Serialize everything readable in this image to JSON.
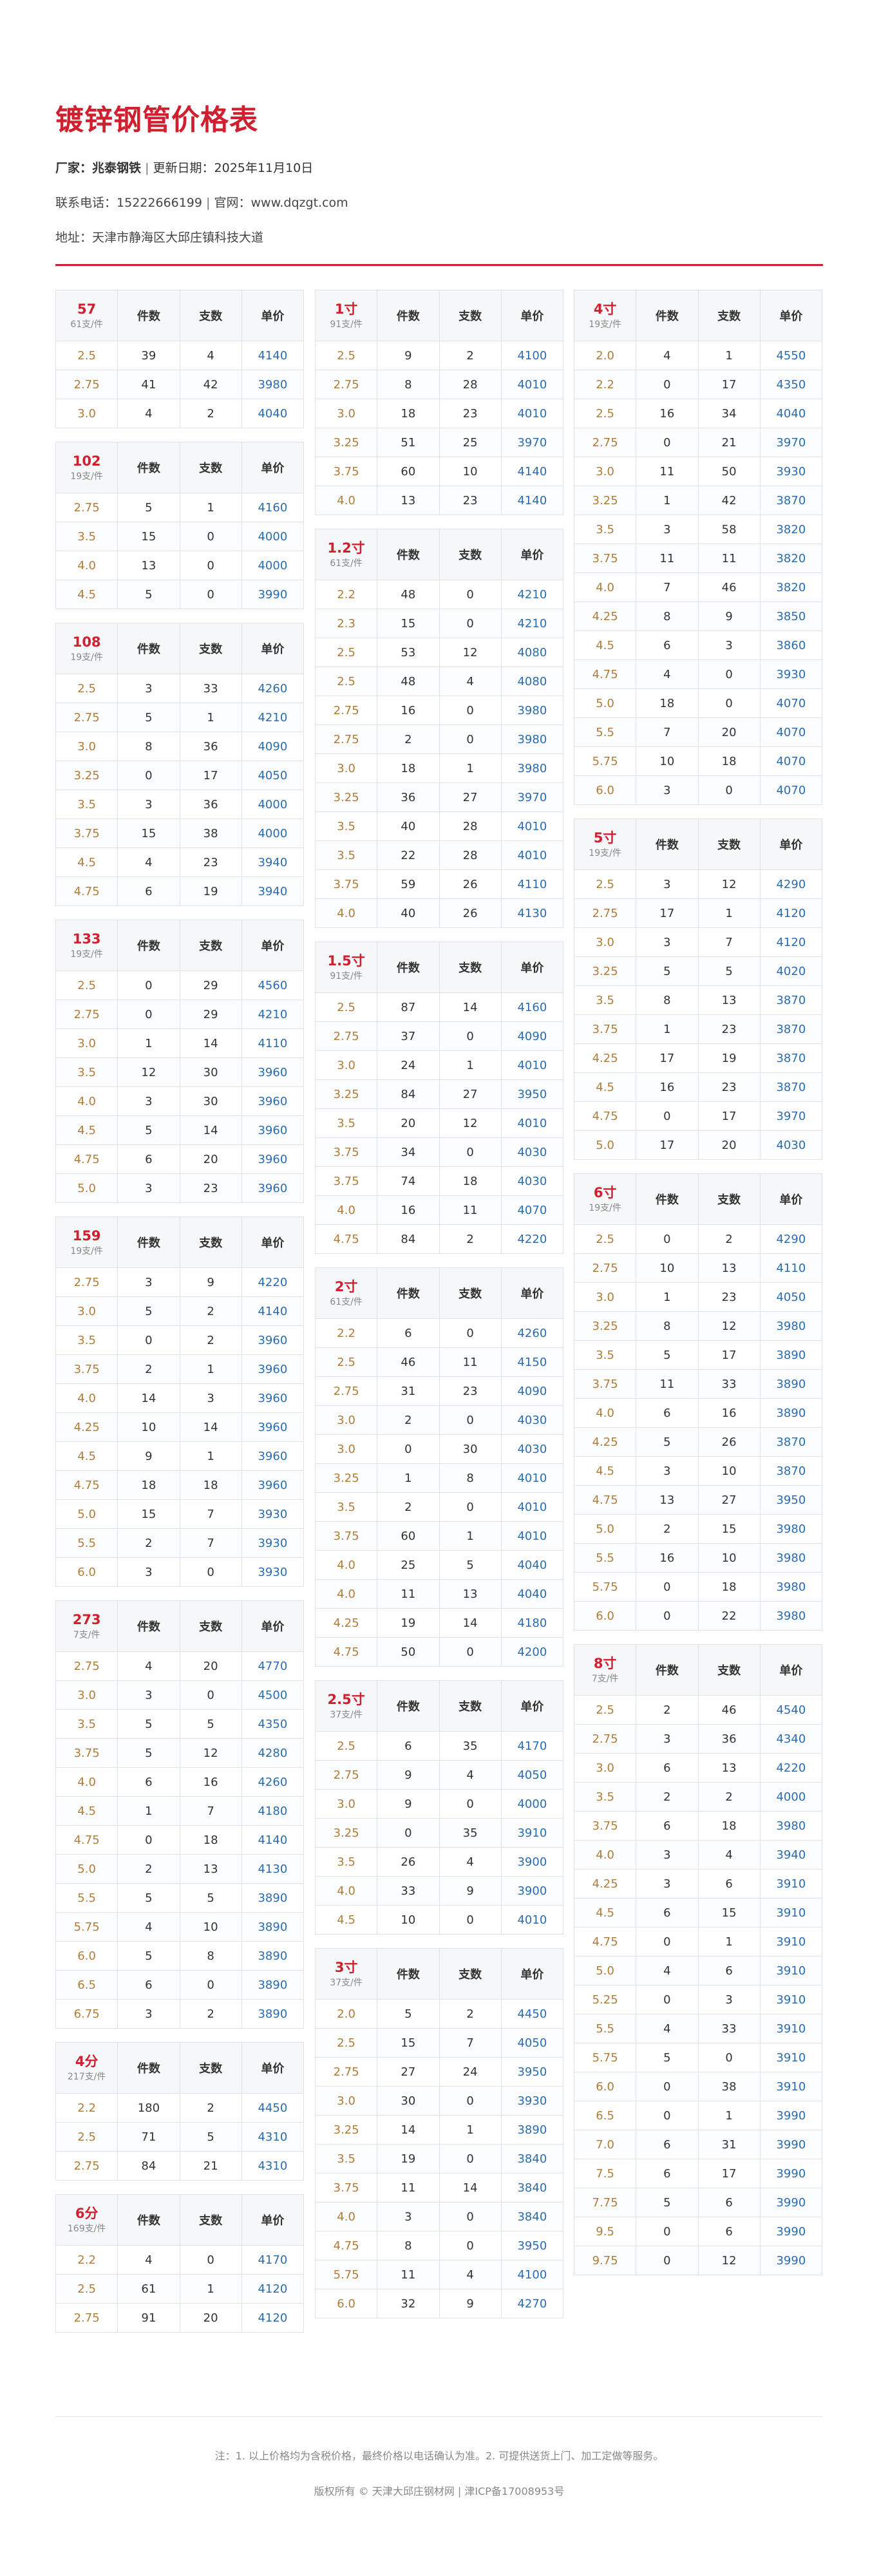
{
  "title": "镀锌钢管价格表",
  "info": {
    "maker_label": "厂家：",
    "maker": "兆泰钢铁",
    "separator": "|",
    "date_label": "更新日期：",
    "date": "2025年11月10日",
    "phone_label": "联系电话：",
    "phone": "15222666199",
    "site_label": "官网：",
    "site": "www.dqzgt.com",
    "addr_label": "地址：",
    "addr": "天津市静海区大邱庄镇科技大道"
  },
  "table_headers": {
    "count": "件数",
    "pieces": "支数",
    "price": "单价"
  },
  "columns": [
    [
      {
        "size": "57",
        "pack": "61支/件",
        "rows": [
          [
            "2.5",
            "39",
            "4",
            "4140"
          ],
          [
            "2.75",
            "41",
            "42",
            "3980"
          ],
          [
            "3.0",
            "4",
            "2",
            "4040"
          ]
        ]
      },
      {
        "size": "102",
        "pack": "19支/件",
        "rows": [
          [
            "2.75",
            "5",
            "1",
            "4160"
          ],
          [
            "3.5",
            "15",
            "0",
            "4000"
          ],
          [
            "4.0",
            "13",
            "0",
            "4000"
          ],
          [
            "4.5",
            "5",
            "0",
            "3990"
          ]
        ]
      },
      {
        "size": "108",
        "pack": "19支/件",
        "rows": [
          [
            "2.5",
            "3",
            "33",
            "4260"
          ],
          [
            "2.75",
            "5",
            "1",
            "4210"
          ],
          [
            "3.0",
            "8",
            "36",
            "4090"
          ],
          [
            "3.25",
            "0",
            "17",
            "4050"
          ],
          [
            "3.5",
            "3",
            "36",
            "4000"
          ],
          [
            "3.75",
            "15",
            "38",
            "4000"
          ],
          [
            "4.5",
            "4",
            "23",
            "3940"
          ],
          [
            "4.75",
            "6",
            "19",
            "3940"
          ]
        ]
      },
      {
        "size": "133",
        "pack": "19支/件",
        "rows": [
          [
            "2.5",
            "0",
            "29",
            "4560"
          ],
          [
            "2.75",
            "0",
            "29",
            "4210"
          ],
          [
            "3.0",
            "1",
            "14",
            "4110"
          ],
          [
            "3.5",
            "12",
            "30",
            "3960"
          ],
          [
            "4.0",
            "3",
            "30",
            "3960"
          ],
          [
            "4.5",
            "5",
            "14",
            "3960"
          ],
          [
            "4.75",
            "6",
            "20",
            "3960"
          ],
          [
            "5.0",
            "3",
            "23",
            "3960"
          ]
        ]
      },
      {
        "size": "159",
        "pack": "19支/件",
        "rows": [
          [
            "2.75",
            "3",
            "9",
            "4220"
          ],
          [
            "3.0",
            "5",
            "2",
            "4140"
          ],
          [
            "3.5",
            "0",
            "2",
            "3960"
          ],
          [
            "3.75",
            "2",
            "1",
            "3960"
          ],
          [
            "4.0",
            "14",
            "3",
            "3960"
          ],
          [
            "4.25",
            "10",
            "14",
            "3960"
          ],
          [
            "4.5",
            "9",
            "1",
            "3960"
          ],
          [
            "4.75",
            "18",
            "18",
            "3960"
          ],
          [
            "5.0",
            "15",
            "7",
            "3930"
          ],
          [
            "5.5",
            "2",
            "7",
            "3930"
          ],
          [
            "6.0",
            "3",
            "0",
            "3930"
          ]
        ]
      },
      {
        "size": "273",
        "pack": "7支/件",
        "rows": [
          [
            "2.75",
            "4",
            "20",
            "4770"
          ],
          [
            "3.0",
            "3",
            "0",
            "4500"
          ],
          [
            "3.5",
            "5",
            "5",
            "4350"
          ],
          [
            "3.75",
            "5",
            "12",
            "4280"
          ],
          [
            "4.0",
            "6",
            "16",
            "4260"
          ],
          [
            "4.5",
            "1",
            "7",
            "4180"
          ],
          [
            "4.75",
            "0",
            "18",
            "4140"
          ],
          [
            "5.0",
            "2",
            "13",
            "4130"
          ],
          [
            "5.5",
            "5",
            "5",
            "3890"
          ],
          [
            "5.75",
            "4",
            "10",
            "3890"
          ],
          [
            "6.0",
            "5",
            "8",
            "3890"
          ],
          [
            "6.5",
            "6",
            "0",
            "3890"
          ],
          [
            "6.75",
            "3",
            "2",
            "3890"
          ]
        ]
      },
      {
        "size": "4分",
        "pack": "217支/件",
        "rows": [
          [
            "2.2",
            "180",
            "2",
            "4450"
          ],
          [
            "2.5",
            "71",
            "5",
            "4310"
          ],
          [
            "2.75",
            "84",
            "21",
            "4310"
          ]
        ]
      },
      {
        "size": "6分",
        "pack": "169支/件",
        "rows": [
          [
            "2.2",
            "4",
            "0",
            "4170"
          ],
          [
            "2.5",
            "61",
            "1",
            "4120"
          ],
          [
            "2.75",
            "91",
            "20",
            "4120"
          ]
        ]
      }
    ],
    [
      {
        "size": "1寸",
        "pack": "91支/件",
        "rows": [
          [
            "2.5",
            "9",
            "2",
            "4100"
          ],
          [
            "2.75",
            "8",
            "28",
            "4010"
          ],
          [
            "3.0",
            "18",
            "23",
            "4010"
          ],
          [
            "3.25",
            "51",
            "25",
            "3970"
          ],
          [
            "3.75",
            "60",
            "10",
            "4140"
          ],
          [
            "4.0",
            "13",
            "23",
            "4140"
          ]
        ]
      },
      {
        "size": "1.2寸",
        "pack": "61支/件",
        "rows": [
          [
            "2.2",
            "48",
            "0",
            "4210"
          ],
          [
            "2.3",
            "15",
            "0",
            "4210"
          ],
          [
            "2.5",
            "53",
            "12",
            "4080"
          ],
          [
            "2.5",
            "48",
            "4",
            "4080"
          ],
          [
            "2.75",
            "16",
            "0",
            "3980"
          ],
          [
            "2.75",
            "2",
            "0",
            "3980"
          ],
          [
            "3.0",
            "18",
            "1",
            "3980"
          ],
          [
            "3.25",
            "36",
            "27",
            "3970"
          ],
          [
            "3.5",
            "40",
            "28",
            "4010"
          ],
          [
            "3.5",
            "22",
            "28",
            "4010"
          ],
          [
            "3.75",
            "59",
            "26",
            "4110"
          ],
          [
            "4.0",
            "40",
            "26",
            "4130"
          ]
        ]
      },
      {
        "size": "1.5寸",
        "pack": "91支/件",
        "rows": [
          [
            "2.5",
            "87",
            "14",
            "4160"
          ],
          [
            "2.75",
            "37",
            "0",
            "4090"
          ],
          [
            "3.0",
            "24",
            "1",
            "4010"
          ],
          [
            "3.25",
            "84",
            "27",
            "3950"
          ],
          [
            "3.5",
            "20",
            "12",
            "4010"
          ],
          [
            "3.75",
            "34",
            "0",
            "4030"
          ],
          [
            "3.75",
            "74",
            "18",
            "4030"
          ],
          [
            "4.0",
            "16",
            "11",
            "4070"
          ],
          [
            "4.75",
            "84",
            "2",
            "4220"
          ]
        ]
      },
      {
        "size": "2寸",
        "pack": "61支/件",
        "rows": [
          [
            "2.2",
            "6",
            "0",
            "4260"
          ],
          [
            "2.5",
            "46",
            "11",
            "4150"
          ],
          [
            "2.75",
            "31",
            "23",
            "4090"
          ],
          [
            "3.0",
            "2",
            "0",
            "4030"
          ],
          [
            "3.0",
            "0",
            "30",
            "4030"
          ],
          [
            "3.25",
            "1",
            "8",
            "4010"
          ],
          [
            "3.5",
            "2",
            "0",
            "4010"
          ],
          [
            "3.75",
            "60",
            "1",
            "4010"
          ],
          [
            "4.0",
            "25",
            "5",
            "4040"
          ],
          [
            "4.0",
            "11",
            "13",
            "4040"
          ],
          [
            "4.25",
            "19",
            "14",
            "4180"
          ],
          [
            "4.75",
            "50",
            "0",
            "4200"
          ]
        ]
      },
      {
        "size": "2.5寸",
        "pack": "37支/件",
        "rows": [
          [
            "2.5",
            "6",
            "35",
            "4170"
          ],
          [
            "2.75",
            "9",
            "4",
            "4050"
          ],
          [
            "3.0",
            "9",
            "0",
            "4000"
          ],
          [
            "3.25",
            "0",
            "35",
            "3910"
          ],
          [
            "3.5",
            "26",
            "4",
            "3900"
          ],
          [
            "4.0",
            "33",
            "9",
            "3900"
          ],
          [
            "4.5",
            "10",
            "0",
            "4010"
          ]
        ]
      },
      {
        "size": "3寸",
        "pack": "37支/件",
        "rows": [
          [
            "2.0",
            "5",
            "2",
            "4450"
          ],
          [
            "2.5",
            "15",
            "7",
            "4050"
          ],
          [
            "2.75",
            "27",
            "24",
            "3950"
          ],
          [
            "3.0",
            "30",
            "0",
            "3930"
          ],
          [
            "3.25",
            "14",
            "1",
            "3890"
          ],
          [
            "3.5",
            "19",
            "0",
            "3840"
          ],
          [
            "3.75",
            "11",
            "14",
            "3840"
          ],
          [
            "4.0",
            "3",
            "0",
            "3840"
          ],
          [
            "4.75",
            "8",
            "0",
            "3950"
          ],
          [
            "5.75",
            "11",
            "4",
            "4100"
          ],
          [
            "6.0",
            "32",
            "9",
            "4270"
          ]
        ]
      }
    ],
    [
      {
        "size": "4寸",
        "pack": "19支/件",
        "rows": [
          [
            "2.0",
            "4",
            "1",
            "4550"
          ],
          [
            "2.2",
            "0",
            "17",
            "4350"
          ],
          [
            "2.5",
            "16",
            "34",
            "4040"
          ],
          [
            "2.75",
            "0",
            "21",
            "3970"
          ],
          [
            "3.0",
            "11",
            "50",
            "3930"
          ],
          [
            "3.25",
            "1",
            "42",
            "3870"
          ],
          [
            "3.5",
            "3",
            "58",
            "3820"
          ],
          [
            "3.75",
            "11",
            "11",
            "3820"
          ],
          [
            "4.0",
            "7",
            "46",
            "3820"
          ],
          [
            "4.25",
            "8",
            "9",
            "3850"
          ],
          [
            "4.5",
            "6",
            "3",
            "3860"
          ],
          [
            "4.75",
            "4",
            "0",
            "3930"
          ],
          [
            "5.0",
            "18",
            "0",
            "4070"
          ],
          [
            "5.5",
            "7",
            "20",
            "4070"
          ],
          [
            "5.75",
            "10",
            "18",
            "4070"
          ],
          [
            "6.0",
            "3",
            "0",
            "4070"
          ]
        ]
      },
      {
        "size": "5寸",
        "pack": "19支/件",
        "rows": [
          [
            "2.5",
            "3",
            "12",
            "4290"
          ],
          [
            "2.75",
            "17",
            "1",
            "4120"
          ],
          [
            "3.0",
            "3",
            "7",
            "4120"
          ],
          [
            "3.25",
            "5",
            "5",
            "4020"
          ],
          [
            "3.5",
            "8",
            "13",
            "3870"
          ],
          [
            "3.75",
            "1",
            "23",
            "3870"
          ],
          [
            "4.25",
            "17",
            "19",
            "3870"
          ],
          [
            "4.5",
            "16",
            "23",
            "3870"
          ],
          [
            "4.75",
            "0",
            "17",
            "3970"
          ],
          [
            "5.0",
            "17",
            "20",
            "4030"
          ]
        ]
      },
      {
        "size": "6寸",
        "pack": "19支/件",
        "rows": [
          [
            "2.5",
            "0",
            "2",
            "4290"
          ],
          [
            "2.75",
            "10",
            "13",
            "4110"
          ],
          [
            "3.0",
            "1",
            "23",
            "4050"
          ],
          [
            "3.25",
            "8",
            "12",
            "3980"
          ],
          [
            "3.5",
            "5",
            "17",
            "3890"
          ],
          [
            "3.75",
            "11",
            "33",
            "3890"
          ],
          [
            "4.0",
            "6",
            "16",
            "3890"
          ],
          [
            "4.25",
            "5",
            "26",
            "3870"
          ],
          [
            "4.5",
            "3",
            "10",
            "3870"
          ],
          [
            "4.75",
            "13",
            "27",
            "3950"
          ],
          [
            "5.0",
            "2",
            "15",
            "3980"
          ],
          [
            "5.5",
            "16",
            "10",
            "3980"
          ],
          [
            "5.75",
            "0",
            "18",
            "3980"
          ],
          [
            "6.0",
            "0",
            "22",
            "3980"
          ]
        ]
      },
      {
        "size": "8寸",
        "pack": "7支/件",
        "rows": [
          [
            "2.5",
            "2",
            "46",
            "4540"
          ],
          [
            "2.75",
            "3",
            "36",
            "4340"
          ],
          [
            "3.0",
            "6",
            "13",
            "4220"
          ],
          [
            "3.5",
            "2",
            "2",
            "4000"
          ],
          [
            "3.75",
            "6",
            "18",
            "3980"
          ],
          [
            "4.0",
            "3",
            "4",
            "3940"
          ],
          [
            "4.25",
            "3",
            "6",
            "3910"
          ],
          [
            "4.5",
            "6",
            "15",
            "3910"
          ],
          [
            "4.75",
            "0",
            "1",
            "3910"
          ],
          [
            "5.0",
            "4",
            "6",
            "3910"
          ],
          [
            "5.25",
            "0",
            "3",
            "3910"
          ],
          [
            "5.5",
            "4",
            "33",
            "3910"
          ],
          [
            "5.75",
            "5",
            "0",
            "3910"
          ],
          [
            "6.0",
            "0",
            "38",
            "3910"
          ],
          [
            "6.5",
            "0",
            "1",
            "3990"
          ],
          [
            "7.0",
            "6",
            "31",
            "3990"
          ],
          [
            "7.5",
            "6",
            "17",
            "3990"
          ],
          [
            "7.75",
            "5",
            "6",
            "3990"
          ],
          [
            "9.5",
            "0",
            "6",
            "3990"
          ],
          [
            "9.75",
            "0",
            "12",
            "3990"
          ]
        ]
      }
    ]
  ],
  "footer": {
    "note": "注：1. 以上价格均为含税价格，最终价格以电话确认为准。2. 可提供送货上门、加工定做等服务。",
    "copyright": "版权所有 © 天津大邱庄钢材网 | 津ICP备17008953号"
  }
}
